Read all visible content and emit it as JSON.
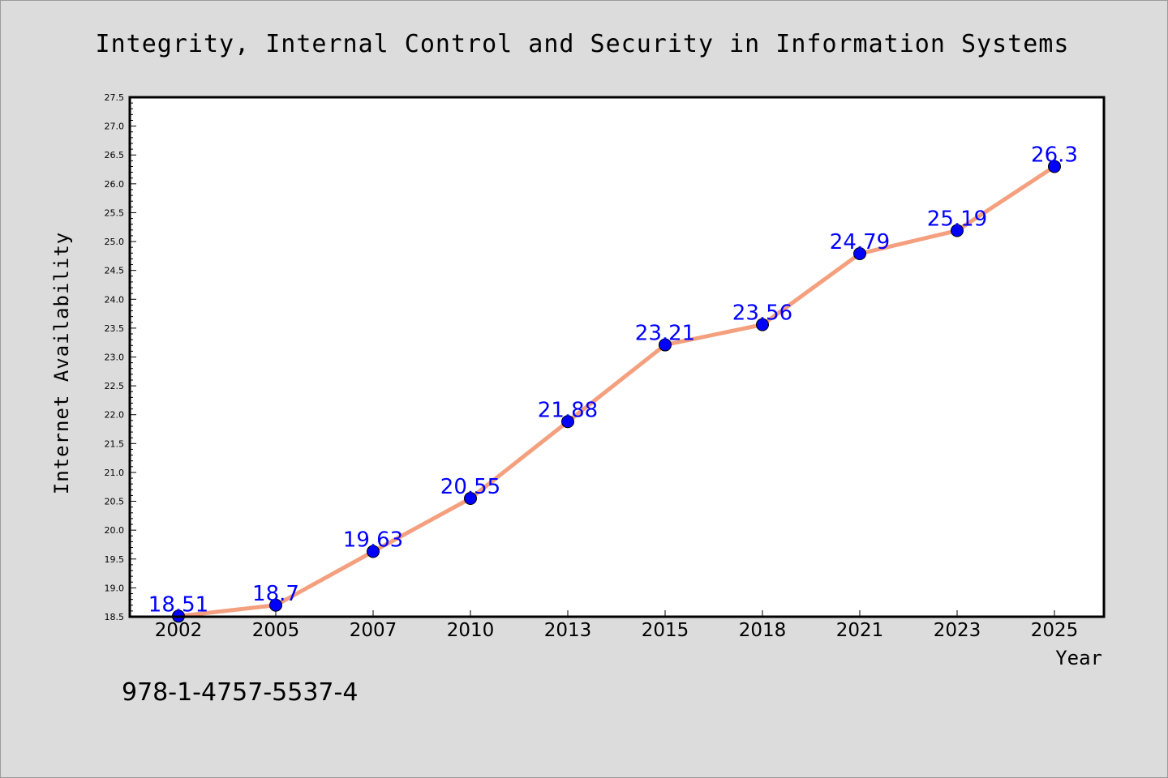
{
  "chart_data": {
    "type": "line",
    "title": "Integrity, Internal Control and Security in Information Systems",
    "xlabel": "Year",
    "ylabel": "Internet Availability",
    "categories": [
      "2002",
      "2005",
      "2007",
      "2010",
      "2013",
      "2015",
      "2018",
      "2021",
      "2023",
      "2025"
    ],
    "values": [
      18.51,
      18.7,
      19.63,
      20.55,
      21.88,
      23.21,
      23.56,
      24.79,
      25.19,
      26.3
    ],
    "data_labels": [
      "18.51",
      "18.7",
      "19.63",
      "20.55",
      "21.88",
      "23.21",
      "23.56",
      "24.79",
      "25.19",
      "26.3"
    ],
    "ylim": [
      18.5,
      27.5
    ],
    "yticks": [
      "18.5",
      "19.0",
      "19.5",
      "20.0",
      "20.5",
      "21.0",
      "21.5",
      "22.0",
      "22.5",
      "23.0",
      "23.5",
      "24.0",
      "24.5",
      "25.0",
      "25.5",
      "26.0",
      "26.5",
      "27.0",
      "27.5"
    ],
    "grid": false,
    "legend": "none",
    "line_color": "#f4a07e",
    "marker_color": "#0000ff",
    "label_color": "#0000ff"
  },
  "annotation": {
    "isbn": "978-1-4757-5537-4"
  }
}
